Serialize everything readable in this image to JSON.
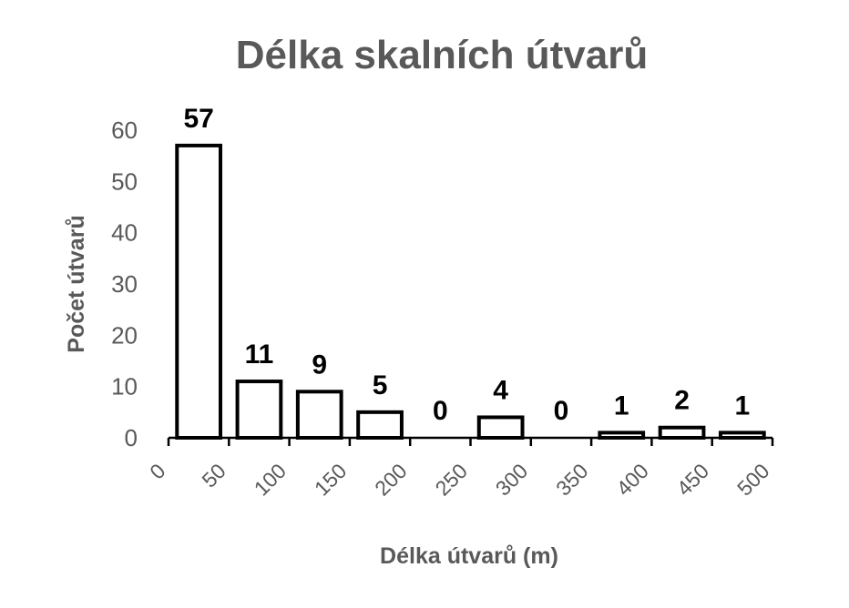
{
  "chart_data": {
    "type": "bar",
    "title": "Délka skalních útvarů",
    "xlabel": "Délka útvarů (m)",
    "ylabel": "Počet útvarů",
    "x_tick_labels": [
      "0",
      "50",
      "100",
      "150",
      "200",
      "250",
      "300",
      "350",
      "400",
      "450",
      "500"
    ],
    "bins": [
      [
        0,
        50
      ],
      [
        50,
        100
      ],
      [
        100,
        150
      ],
      [
        150,
        200
      ],
      [
        200,
        250
      ],
      [
        250,
        300
      ],
      [
        300,
        350
      ],
      [
        350,
        400
      ],
      [
        400,
        450
      ],
      [
        450,
        500
      ]
    ],
    "values": [
      57,
      11,
      9,
      5,
      0,
      4,
      0,
      1,
      2,
      1
    ],
    "data_labels": [
      "57",
      "11",
      "9",
      "5",
      "0",
      "4",
      "0",
      "1",
      "2",
      "1"
    ],
    "y_ticks": [
      "0",
      "10",
      "20",
      "30",
      "40",
      "50",
      "60"
    ],
    "ylim": [
      0,
      60
    ],
    "grid": false,
    "legend": "none",
    "colors": {
      "bar_fill": "#ffffff",
      "bar_stroke": "#000000",
      "text": "#595959",
      "data_label": "#000000"
    }
  }
}
